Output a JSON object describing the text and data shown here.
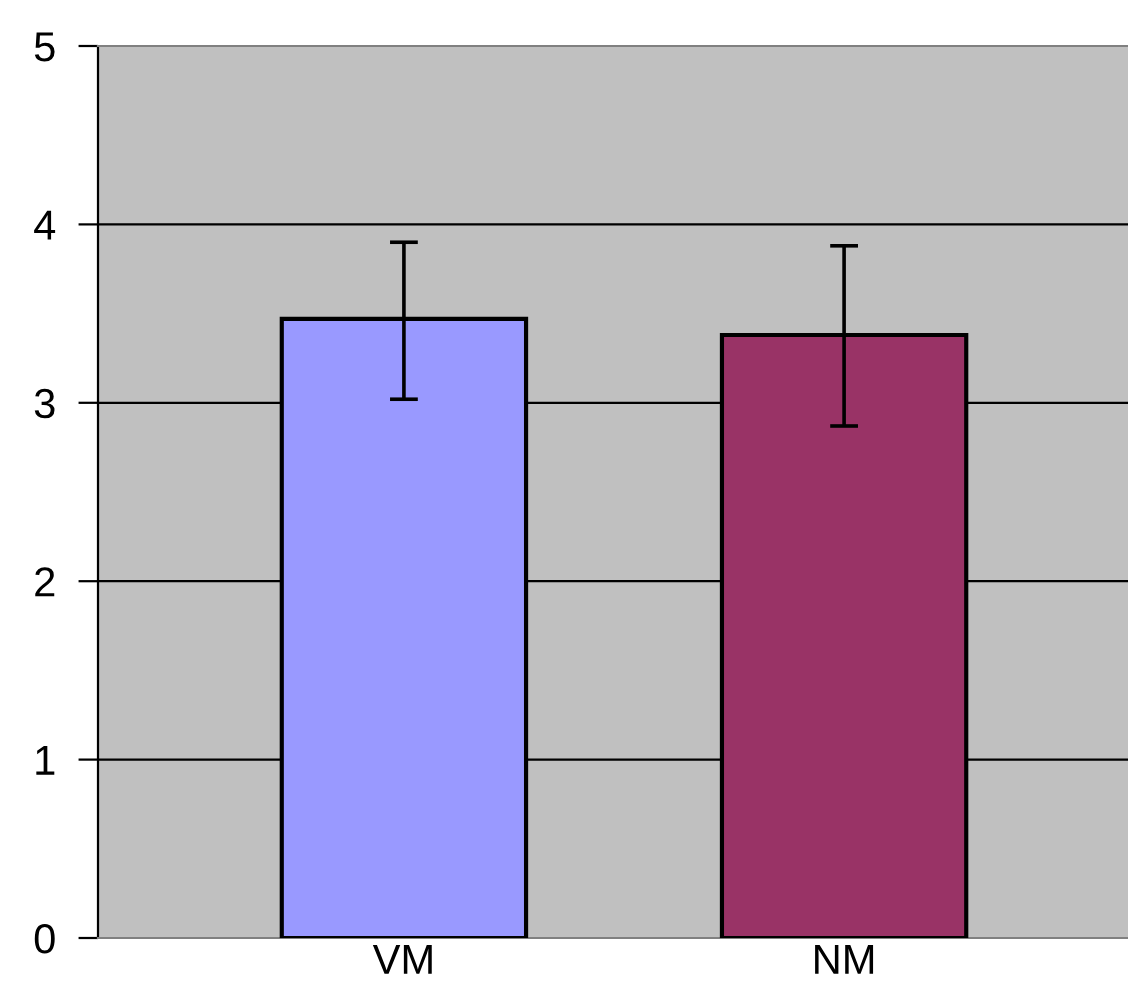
{
  "chart_data": {
    "type": "bar",
    "categories": [
      "VM",
      "NM"
    ],
    "values": [
      3.47,
      3.38
    ],
    "colors": [
      "#9999ff",
      "#993366"
    ],
    "errors": [
      [
        3.02,
        3.9
      ],
      [
        2.87,
        3.88
      ]
    ],
    "ylim": [
      0,
      5
    ],
    "yticks": [
      0,
      1,
      2,
      3,
      4,
      5
    ],
    "grid": "y"
  }
}
